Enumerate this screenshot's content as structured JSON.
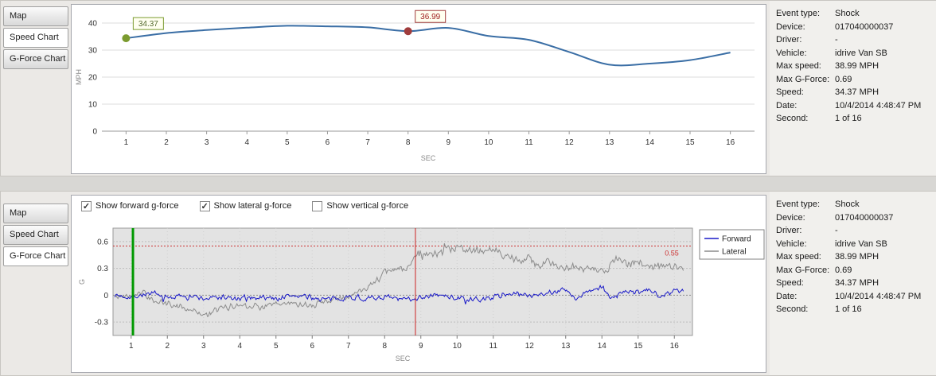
{
  "tabs": [
    "Map",
    "Speed Chart",
    "G-Force Chart"
  ],
  "top_panel": {
    "active_tab": "Speed Chart"
  },
  "bottom_panel": {
    "active_tab": "G-Force Chart",
    "checkboxes": [
      {
        "label": "Show forward g-force",
        "checked": true
      },
      {
        "label": "Show lateral g-force",
        "checked": true
      },
      {
        "label": "Show vertical g-force",
        "checked": false
      }
    ]
  },
  "event_info": {
    "rows": [
      {
        "label": "Event type:",
        "value": "Shock"
      },
      {
        "label": "Device:",
        "value": "017040000037"
      },
      {
        "label": "Driver:",
        "value": "-"
      },
      {
        "label": "Vehicle:",
        "value": "idrive Van SB"
      },
      {
        "label": "Max speed:",
        "value": "38.99 MPH"
      },
      {
        "label": "Max G-Force:",
        "value": "0.69"
      },
      {
        "label": "Speed:",
        "value": "34.37 MPH"
      },
      {
        "label": "Date:",
        "value": "10/4/2014 4:48:47 PM"
      },
      {
        "label": "Second:",
        "value": "1 of 16"
      }
    ]
  },
  "chart_data": [
    {
      "id": "speed",
      "type": "line",
      "title": "",
      "xlabel": "SEC",
      "ylabel": "MPH",
      "x": [
        1,
        2,
        3,
        4,
        5,
        6,
        7,
        8,
        9,
        10,
        11,
        12,
        13,
        14,
        15,
        16
      ],
      "values": [
        34.37,
        36.3,
        37.4,
        38.3,
        38.99,
        38.8,
        38.4,
        36.99,
        38.2,
        35.2,
        33.8,
        29.3,
        24.6,
        25.0,
        26.3,
        29.1
      ],
      "ylim": [
        0,
        40
      ],
      "yticks": [
        0,
        10,
        20,
        30,
        40
      ],
      "line_color": "#3a6ea5",
      "grid": "horizontal",
      "annotations": [
        {
          "x": 1,
          "y": 34.37,
          "label": "34.37",
          "color": "#7b9b2f",
          "text_color": "#556b2f"
        },
        {
          "x": 8,
          "y": 36.99,
          "label": "36.99",
          "color": "#a03c3c",
          "text_color": "#a02020"
        }
      ]
    },
    {
      "id": "gforce",
      "type": "line",
      "xlabel": "SEC",
      "ylabel": "G",
      "xlim": [
        0.5,
        16.5
      ],
      "ylim": [
        -0.45,
        0.75
      ],
      "xticks": [
        1,
        2,
        3,
        4,
        5,
        6,
        7,
        8,
        9,
        10,
        11,
        12,
        13,
        14,
        15,
        16
      ],
      "yticks": [
        -0.3,
        0,
        0.3,
        0.6
      ],
      "x_range": [
        0.55,
        16.25
      ],
      "samples": 540,
      "threshold": {
        "value": 0.55,
        "label": "0.55",
        "color": "#cc3333"
      },
      "cursor_lines": [
        {
          "name": "event-second-cursor",
          "x": 1.05,
          "color": "#009900",
          "width": 3
        },
        {
          "name": "shock-cursor",
          "x": 8.85,
          "color": "#cc2222",
          "width": 1
        }
      ],
      "legend_position": "top-right",
      "series": [
        {
          "name": "Forward",
          "color": "#1a1ac8",
          "noise": 0.03,
          "keypoints": [
            [
              0.55,
              0
            ],
            [
              1,
              -0.02
            ],
            [
              1.5,
              0.02
            ],
            [
              2,
              -0.03
            ],
            [
              2.5,
              0
            ],
            [
              3,
              -0.04
            ],
            [
              3.5,
              -0.02
            ],
            [
              4,
              -0.05
            ],
            [
              4.5,
              -0.02
            ],
            [
              5,
              -0.04
            ],
            [
              5.5,
              0
            ],
            [
              6,
              -0.03
            ],
            [
              6.5,
              -0.05
            ],
            [
              7,
              -0.02
            ],
            [
              7.5,
              -0.04
            ],
            [
              8,
              -0.02
            ],
            [
              8.5,
              -0.05
            ],
            [
              9,
              -0.02
            ],
            [
              9.5,
              0
            ],
            [
              10,
              -0.03
            ],
            [
              10.5,
              -0.06
            ],
            [
              11,
              -0.02
            ],
            [
              11.5,
              0.02
            ],
            [
              12,
              0
            ],
            [
              12.5,
              0.03
            ],
            [
              13,
              0.06
            ],
            [
              13.3,
              -0.06
            ],
            [
              13.6,
              0.05
            ],
            [
              14,
              0.08
            ],
            [
              14.3,
              -0.04
            ],
            [
              14.6,
              0.05
            ],
            [
              15,
              0.02
            ],
            [
              15.3,
              0.06
            ],
            [
              15.6,
              0
            ],
            [
              16,
              0.05
            ],
            [
              16.25,
              0.04
            ]
          ]
        },
        {
          "name": "Lateral",
          "color": "#8c8c8c",
          "noise": 0.032,
          "keypoints": [
            [
              0.55,
              -0.02
            ],
            [
              1,
              0
            ],
            [
              1.3,
              0.04
            ],
            [
              1.6,
              -0.06
            ],
            [
              2,
              -0.1
            ],
            [
              2.4,
              -0.13
            ],
            [
              2.8,
              -0.18
            ],
            [
              3.1,
              -0.23
            ],
            [
              3.4,
              -0.16
            ],
            [
              3.8,
              -0.12
            ],
            [
              4.2,
              -0.1
            ],
            [
              4.6,
              -0.13
            ],
            [
              5,
              -0.1
            ],
            [
              5.5,
              -0.09
            ],
            [
              6,
              -0.11
            ],
            [
              6.5,
              -0.06
            ],
            [
              7,
              -0.02
            ],
            [
              7.3,
              0.04
            ],
            [
              7.6,
              0.12
            ],
            [
              8,
              0.24
            ],
            [
              8.3,
              0.3
            ],
            [
              8.6,
              0.27
            ],
            [
              8.9,
              0.44
            ],
            [
              9.2,
              0.47
            ],
            [
              9.5,
              0.44
            ],
            [
              9.8,
              0.5
            ],
            [
              10.1,
              0.55
            ],
            [
              10.4,
              0.5
            ],
            [
              10.7,
              0.47
            ],
            [
              11,
              0.52
            ],
            [
              11.3,
              0.46
            ],
            [
              11.6,
              0.42
            ],
            [
              12,
              0.4
            ],
            [
              12.3,
              0.34
            ],
            [
              12.6,
              0.37
            ],
            [
              13,
              0.3
            ],
            [
              13.4,
              0.32
            ],
            [
              13.8,
              0.28
            ],
            [
              14.1,
              0.27
            ],
            [
              14.4,
              0.4
            ],
            [
              14.7,
              0.34
            ],
            [
              15,
              0.38
            ],
            [
              15.3,
              0.31
            ],
            [
              15.6,
              0.34
            ],
            [
              16,
              0.3
            ],
            [
              16.25,
              0.28
            ]
          ]
        }
      ]
    }
  ]
}
